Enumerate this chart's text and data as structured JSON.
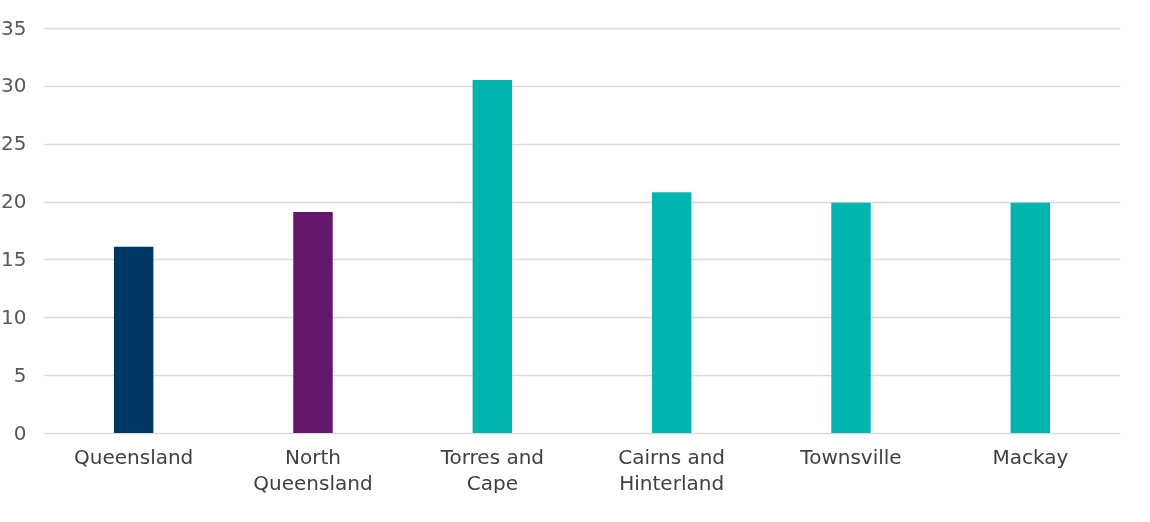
{
  "chart_data": {
    "type": "bar",
    "categories": [
      "Queensland",
      "North Queensland",
      "Torres and Cape",
      "Cairns and Hinterland",
      "Townsville",
      "Mackay"
    ],
    "values": [
      16.1,
      19.1,
      30.5,
      20.8,
      19.9,
      19.9
    ],
    "colors": [
      "#003865",
      "#63166b",
      "#00b5ad",
      "#00b5ad",
      "#00b5ad",
      "#00b5ad"
    ],
    "ylim": [
      0,
      35
    ],
    "yticks": [
      0,
      5,
      10,
      15,
      20,
      25,
      30,
      35
    ],
    "grid": "y"
  }
}
